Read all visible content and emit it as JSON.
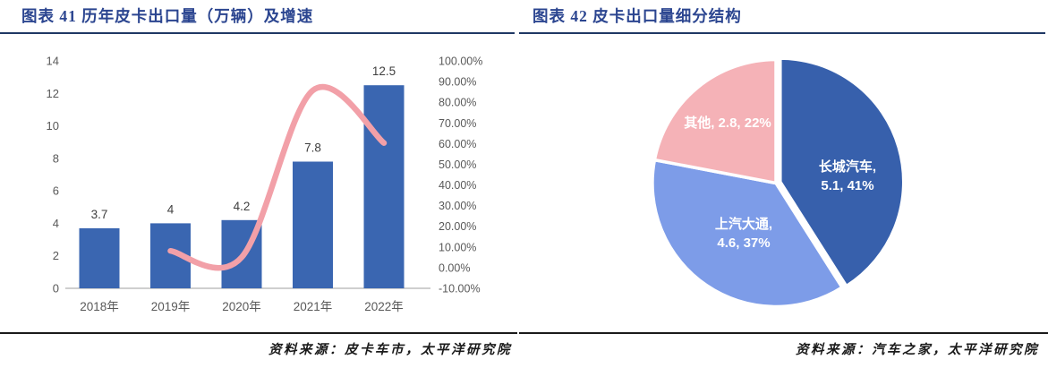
{
  "left_panel": {
    "title": "图表 41 历年皮卡出口量（万辆）及增速",
    "source": "资料来源：皮卡车市，太平洋研究院"
  },
  "right_panel": {
    "title": "图表 42 皮卡出口量细分结构",
    "source": "资料来源：汽车之家，太平洋研究院"
  },
  "chart_data": [
    {
      "type": "bar",
      "subtype": "bar-line-combo",
      "title": "历年皮卡出口量（万辆）及增速",
      "categories": [
        "2018年",
        "2019年",
        "2020年",
        "2021年",
        "2022年"
      ],
      "series": [
        {
          "name": "皮卡出口量（万辆）",
          "type": "bar",
          "axis": "left",
          "color": "#3A66B1",
          "values": [
            3.7,
            4,
            4.2,
            7.8,
            12.5
          ],
          "data_labels": [
            "3.7",
            "4",
            "4.2",
            "7.8",
            "12.5"
          ]
        },
        {
          "name": "增速",
          "type": "line",
          "axis": "right",
          "color": "#F2A0A8",
          "smooth": true,
          "values_pct": [
            null,
            8.1,
            5,
            85.7,
            60.3
          ]
        }
      ],
      "left_axis": {
        "min": 0,
        "max": 14,
        "step": 2,
        "tick_labels": [
          "14",
          "12",
          "10",
          "8",
          "6",
          "4",
          "2",
          "0"
        ]
      },
      "right_axis": {
        "min_pct": -10,
        "max_pct": 100,
        "step_pct": 10,
        "tick_labels": [
          "100.00%",
          "90.00%",
          "80.00%",
          "70.00%",
          "60.00%",
          "50.00%",
          "40.00%",
          "30.00%",
          "20.00%",
          "10.00%",
          "0.00%",
          "-10.00%"
        ]
      },
      "grid": false,
      "legend": "none"
    },
    {
      "type": "pie",
      "title": "皮卡出口量细分结构",
      "slices": [
        {
          "name": "长城汽车",
          "value": 5.1,
          "percent": 41,
          "color": "#3760AC",
          "label_lines": [
            "长城汽车,",
            "5.1, 41%"
          ],
          "exploded": true
        },
        {
          "name": "上汽大通",
          "value": 4.6,
          "percent": 37,
          "color": "#7D9CE8",
          "label_lines": [
            "上汽大通,",
            "4.6, 37%"
          ],
          "exploded": false
        },
        {
          "name": "其他",
          "value": 2.8,
          "percent": 22,
          "color": "#F5B2B7",
          "label_lines": [
            "其他, 2.8, 22%"
          ],
          "exploded": false
        }
      ],
      "start_angle_deg": 0,
      "direction": "clockwise",
      "label_color": "#FFFFFF",
      "legend": "none"
    }
  ],
  "colors": {
    "title_text": "#2B4590",
    "title_rule": "#203864",
    "bottom_rule": "#1A1A1A",
    "axis_text": "#595959",
    "data_label_text": "#3F3F3F",
    "axis_line": "#BFBFBF",
    "pie_border": "#FFFFFF",
    "source_text": "#1A1A1A"
  }
}
